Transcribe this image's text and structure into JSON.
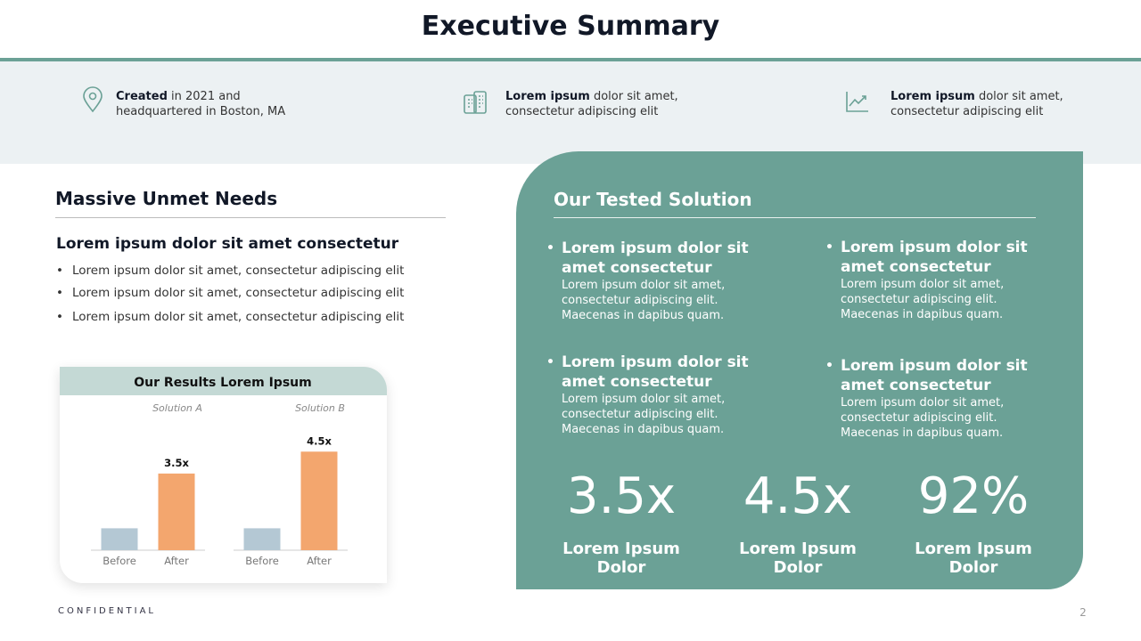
{
  "header": {
    "title": "Executive Summary"
  },
  "info_items": [
    {
      "bold": "Created",
      "text": "in 2021 and headquartered in Boston, MA"
    },
    {
      "bold": "Lorem ipsum",
      "text": "dolor sit amet, consectetur adipiscing elit"
    },
    {
      "bold": "Lorem ipsum",
      "text": "dolor sit amet, consectetur adipiscing elit"
    }
  ],
  "left": {
    "heading": "Massive Unmet Needs",
    "subheading": "Lorem ipsum dolor sit amet consectetur",
    "bullets": [
      "Lorem ipsum dolor sit amet, consectetur adipiscing elit",
      "Lorem ipsum dolor sit amet, consectetur adipiscing elit",
      "Lorem ipsum dolor sit amet, consectetur adipiscing elit"
    ]
  },
  "results_chart": {
    "type": "bar",
    "title": "Our Results Lorem Ipsum",
    "ylim": [
      0,
      5
    ],
    "colors": [
      "#b4c8d4",
      "#f3a66e"
    ],
    "groups": [
      {
        "name": "Solution A",
        "categories": [
          "Before",
          "After"
        ],
        "values": [
          1,
          3.5
        ],
        "value_labels": [
          null,
          "3.5x"
        ]
      },
      {
        "name": "Solution B",
        "categories": [
          "Before",
          "After"
        ],
        "values": [
          1,
          4.5
        ],
        "value_labels": [
          null,
          "4.5x"
        ]
      }
    ]
  },
  "solution": {
    "title": "Our Tested Solution",
    "items": [
      {
        "heading": "Lorem ipsum dolor sit amet consectetur",
        "body": "Lorem ipsum dolor sit amet, consectetur adipiscing elit. Maecenas in dapibus quam."
      },
      {
        "heading": "Lorem ipsum dolor sit amet consectetur",
        "body": "Lorem ipsum dolor sit amet, consectetur adipiscing elit. Maecenas in dapibus quam."
      },
      {
        "heading": "Lorem ipsum dolor sit amet consectetur",
        "body": "Lorem ipsum dolor sit amet, consectetur adipiscing elit. Maecenas in dapibus quam."
      },
      {
        "heading": "Lorem ipsum dolor sit amet consectetur",
        "body": "Lorem ipsum dolor sit amet, consectetur adipiscing elit. Maecenas in dapibus quam."
      }
    ],
    "stats": [
      {
        "value": "3.5x",
        "label": "Lorem Ipsum Dolor"
      },
      {
        "value": "4.5x",
        "label": "Lorem Ipsum Dolor"
      },
      {
        "value": "92%",
        "label": "Lorem Ipsum Dolor"
      }
    ]
  },
  "footer": {
    "confidential": "CONFIDENTIAL",
    "page": "2"
  }
}
